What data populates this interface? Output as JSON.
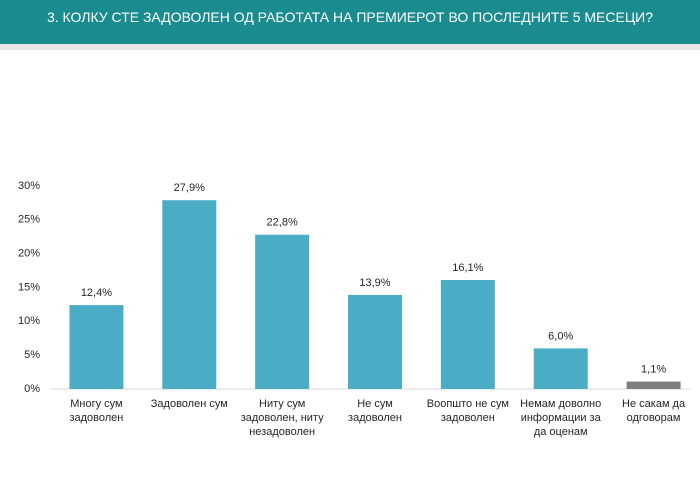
{
  "chart_data": {
    "type": "bar",
    "title": "3. КОЛКУ СТЕ ЗАДОВОЛЕН ОД РАБОТАТА НА ПРЕМИЕРОТ ВО ПОСЛЕДНИТЕ 5 МЕСЕЦИ?",
    "categories": [
      "Многу сум задоволен",
      "Задоволен сум",
      "Ниту сум задоволен, ниту незадоволен",
      "Не сум задоволен",
      "Воопшто не сум задоволен",
      "Немам доволно информации за да оценам",
      "Не сакам да одговорам"
    ],
    "values": [
      12.4,
      27.9,
      22.8,
      13.9,
      16.1,
      6.0,
      1.1
    ],
    "value_labels": [
      "12,4%",
      "27,9%",
      "22,8%",
      "13,9%",
      "16,1%",
      "6,0%",
      "1,1%"
    ],
    "colors": [
      "#4bacc6",
      "#4bacc6",
      "#4bacc6",
      "#4bacc6",
      "#4bacc6",
      "#4bacc6",
      "#7f7f7f"
    ],
    "ylim": [
      0,
      30
    ],
    "yticks": [
      {
        "value": 0,
        "label": "0%"
      },
      {
        "value": 5,
        "label": "5%"
      },
      {
        "value": 10,
        "label": "10%"
      },
      {
        "value": 15,
        "label": "15%"
      },
      {
        "value": 20,
        "label": "20%"
      },
      {
        "value": 25,
        "label": "25%"
      },
      {
        "value": 30,
        "label": "30%"
      }
    ],
    "grid": false
  }
}
